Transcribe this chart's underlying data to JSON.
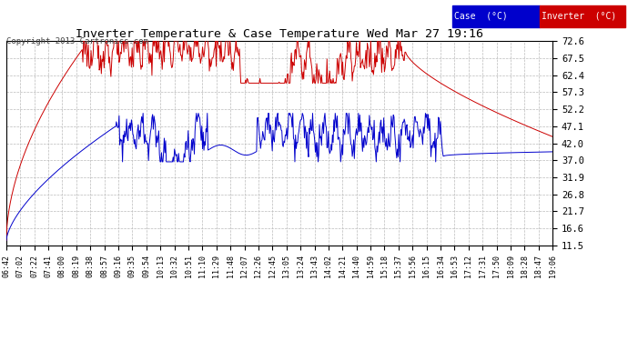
{
  "title": "Inverter Temperature & Case Temperature Wed Mar 27 19:16",
  "copyright": "Copyright 2013 Cartronics.com",
  "bg_color": "#ffffff",
  "plot_bg_color": "#ffffff",
  "grid_color": "#bbbbbb",
  "yticks": [
    11.5,
    16.6,
    21.7,
    26.8,
    31.9,
    37.0,
    42.0,
    47.1,
    52.2,
    57.3,
    62.4,
    67.5,
    72.6
  ],
  "ymin": 11.5,
  "ymax": 72.6,
  "case_color": "#0000cc",
  "inverter_color": "#cc0000",
  "xtick_labels": [
    "06:42",
    "07:02",
    "07:22",
    "07:41",
    "08:00",
    "08:19",
    "08:38",
    "08:57",
    "09:16",
    "09:35",
    "09:54",
    "10:13",
    "10:32",
    "10:51",
    "11:10",
    "11:29",
    "11:48",
    "12:07",
    "12:26",
    "12:45",
    "13:05",
    "13:24",
    "13:43",
    "14:02",
    "14:21",
    "14:40",
    "14:59",
    "15:18",
    "15:37",
    "15:56",
    "16:15",
    "16:34",
    "16:53",
    "17:12",
    "17:31",
    "17:50",
    "18:09",
    "18:28",
    "18:47",
    "19:06"
  ]
}
